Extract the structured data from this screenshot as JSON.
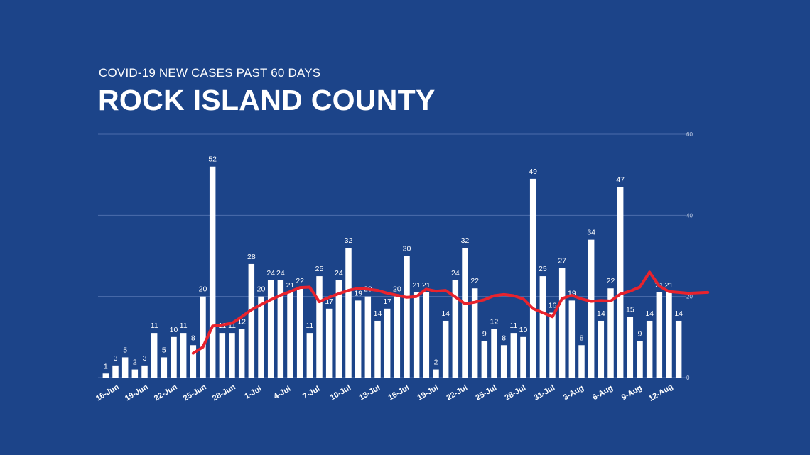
{
  "header": {
    "subtitle": "COVID-19 NEW CASES PAST 60 DAYS",
    "title": "ROCK ISLAND COUNTY"
  },
  "colors": {
    "background": "#1c4489",
    "bars": "#ffffff",
    "average_line": "#e8232d",
    "gridline": "#5a78b4"
  },
  "chart_data": {
    "type": "bar",
    "title": "ROCK ISLAND COUNTY",
    "subtitle": "COVID-19 NEW CASES PAST 60 DAYS",
    "ylim": [
      0,
      60
    ],
    "y_ticks": [
      0,
      20,
      40,
      60
    ],
    "y_axis_position": "right",
    "grid": true,
    "x_tick_labels": [
      "16-Jun",
      "19-Jun",
      "22-Jun",
      "25-Jun",
      "28-Jun",
      "1-Jul",
      "4-Jul",
      "7-Jul",
      "10-Jul",
      "13-Jul",
      "16-Jul",
      "19-Jul",
      "22-Jul",
      "25-Jul",
      "28-Jul",
      "31-Jul",
      "3-Aug",
      "6-Aug",
      "9-Aug",
      "12-Aug"
    ],
    "values": [
      1,
      3,
      5,
      2,
      3,
      11,
      5,
      10,
      11,
      8,
      20,
      52,
      11,
      11,
      12,
      28,
      20,
      24,
      24,
      21,
      22,
      11,
      25,
      17,
      24,
      32,
      19,
      20,
      14,
      17,
      20,
      30,
      21,
      21,
      2,
      14,
      24,
      32,
      22,
      9,
      12,
      8,
      11,
      10,
      49,
      25,
      16,
      27,
      19,
      8,
      34,
      14,
      22,
      47,
      15,
      9,
      14,
      21,
      21,
      14
    ],
    "series": [
      {
        "type": "line",
        "start_index": 9,
        "values": [
          6,
          7.5,
          12.7,
          13,
          13.4,
          15,
          16.7,
          18,
          19.2,
          20.3,
          21.2,
          22.2,
          22.3,
          18.7,
          19.8,
          20.7,
          21.5,
          22,
          21.8,
          21.5,
          20.8,
          20.3,
          19.8,
          20,
          21.8,
          21.3,
          21.5,
          19.9,
          18.2,
          18.6,
          19.2,
          20.2,
          20.5,
          20.2,
          19.4,
          17,
          16,
          15,
          19.5,
          20.3,
          19.4,
          18.8,
          19,
          18.9,
          20.6,
          21.3,
          22.3,
          26,
          22.6,
          21.2,
          21,
          20.8,
          20.9,
          21
        ]
      }
    ]
  }
}
